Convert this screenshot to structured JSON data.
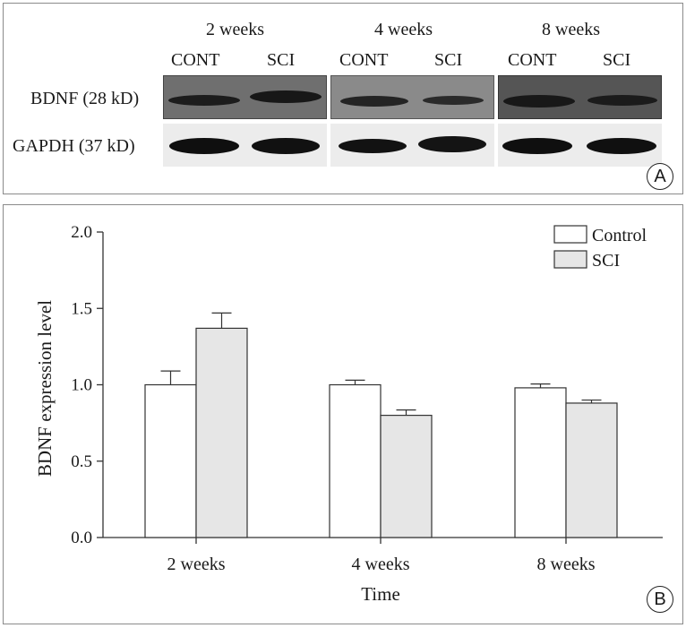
{
  "panel_a": {
    "letter": "A",
    "time_labels": [
      "2 weeks",
      "4 weeks",
      "8 weeks"
    ],
    "lane_labels": [
      "CONT",
      "SCI",
      "CONT",
      "SCI",
      "CONT",
      "SCI"
    ],
    "row_labels": [
      "BDNF (28 kD)",
      "GAPDH (37 kD)"
    ]
  },
  "panel_b": {
    "letter": "B"
  },
  "chart_data": {
    "type": "bar",
    "categories": [
      "2 weeks",
      "4 weeks",
      "8 weeks"
    ],
    "series": [
      {
        "name": "Control",
        "values": [
          1.0,
          1.0,
          0.98
        ],
        "errors": [
          0.09,
          0.03,
          0.025
        ],
        "color": "#ffffff"
      },
      {
        "name": "SCI",
        "values": [
          1.37,
          0.8,
          0.88
        ],
        "errors": [
          0.1,
          0.035,
          0.02
        ],
        "color": "#e6e6e6"
      }
    ],
    "xlabel": "Time",
    "ylabel": "BDNF expression level",
    "ylim": [
      0,
      2.0
    ],
    "yticks": [
      0.0,
      0.5,
      1.0,
      1.5,
      2.0
    ],
    "ytick_labels": [
      "0.0",
      "0.5",
      "1.0",
      "1.5",
      "2.0"
    ],
    "legend_position": "top-right",
    "grid": false
  }
}
